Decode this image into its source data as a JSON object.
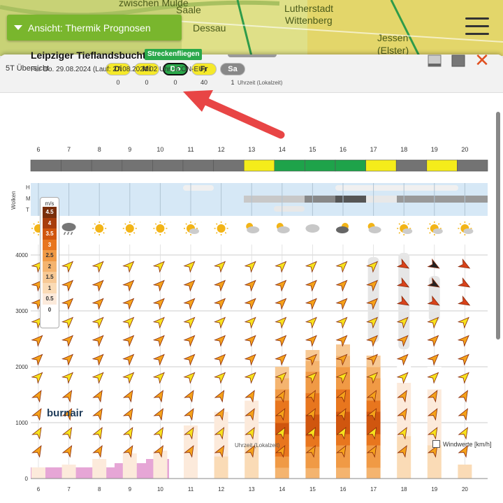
{
  "map": {
    "cities": [
      "zwischen Mulde",
      "Saale",
      "Dessau",
      "Lutherstadt",
      "Wittenberg",
      "Jessen",
      "(Elster)"
    ]
  },
  "view_button": {
    "label": "Ansicht: Thermik Prognosen"
  },
  "overview": {
    "label": "5T Übersicht",
    "days": [
      {
        "label": "Di",
        "count": "0",
        "color": "#f5e92a",
        "selected": false
      },
      {
        "label": "Mi",
        "count": "0",
        "color": "#f5e92a",
        "selected": false
      },
      {
        "label": "Do",
        "count": "0",
        "color": "#2aa84a",
        "selected": true
      },
      {
        "label": "Fr",
        "count": "40",
        "color": "#f5e92a",
        "selected": false
      },
      {
        "label": "Sa",
        "count": "1",
        "color": "#888888",
        "selected": false
      }
    ]
  },
  "forecast": {
    "region": "Leipziger Tieflandsbucht",
    "badge": "Streckenfliegen",
    "subtitle": "Für Do. 29.08.2024 (Lauf: 27.08.2024 02 Uhr, ICON-EU)",
    "axis_label_top": "Uhrzeit (Lokalzeit)",
    "axis_label_bottom": "Uhrzeit (Lokalzeit)",
    "clouds_label": "Wolken",
    "cloud_levels": [
      "H",
      "M",
      "T"
    ],
    "wind_values_label": "Windwerte [km/h]",
    "logo": "burnair"
  },
  "chart_data": {
    "type": "heatmap",
    "hours": [
      6,
      7,
      8,
      9,
      10,
      11,
      12,
      13,
      14,
      15,
      16,
      17,
      18,
      19,
      20
    ],
    "hour_quality": [
      "grey",
      "grey",
      "grey",
      "grey",
      "grey",
      "grey",
      "grey",
      "yellow",
      "green",
      "green",
      "green",
      "yellow",
      "grey",
      "yellow",
      "grey"
    ],
    "altitude_ticks": [
      0,
      1000,
      2000,
      3000,
      4000
    ],
    "legend": {
      "title": "m/s",
      "values": [
        "4.5",
        "4",
        "3.5",
        "3",
        "2.5",
        "2",
        "1.5",
        "1",
        "0.5",
        "0"
      ],
      "colors": [
        "#7a2e0a",
        "#a83d0c",
        "#d0560f",
        "#e8761e",
        "#f09a45",
        "#f4b46f",
        "#f7c995",
        "#fadbb6",
        "#fceadb",
        "#ffffff"
      ]
    },
    "thermal_tops_m": [
      200,
      250,
      350,
      450,
      500,
      950,
      1400,
      1800,
      2000,
      2300,
      2400,
      2200,
      2100,
      2000,
      250
    ],
    "weather_icons": [
      "sun",
      "cloud-rain",
      "sun",
      "sun",
      "sun",
      "sun-cloud",
      "sun",
      "cloud-sun",
      "cloud-sun",
      "cloud",
      "cloud-dark",
      "cloud-sun",
      "sun-cloud",
      "sun-cloud",
      "sun-cloud"
    ]
  }
}
